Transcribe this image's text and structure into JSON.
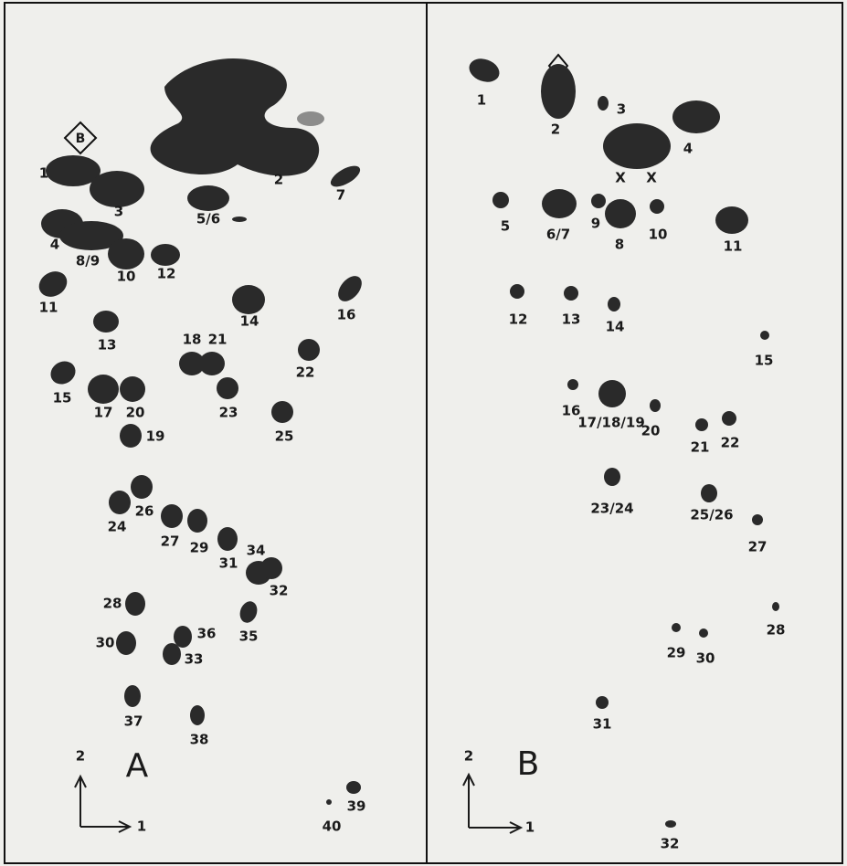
{
  "panel_a": {
    "letter": "A",
    "marker": "B",
    "axis_x": "1",
    "axis_y": "2",
    "spots": [
      "1",
      "3",
      "5/6",
      "2",
      "7",
      "4",
      "8/9",
      "10",
      "12",
      "11",
      "14",
      "16",
      "13",
      "18",
      "21",
      "22",
      "15",
      "17",
      "20",
      "23",
      "25",
      "19",
      "24",
      "26",
      "27",
      "29",
      "31",
      "34",
      "32",
      "28",
      "35",
      "30",
      "36",
      "33",
      "37",
      "38",
      "40",
      "39"
    ]
  },
  "panel_b": {
    "letter": "B",
    "axis_x": "1",
    "axis_y": "2",
    "marks": [
      "X",
      "X"
    ],
    "spots": [
      "1",
      "2",
      "3",
      "4",
      "5",
      "6/7",
      "9",
      "8",
      "10",
      "11",
      "12",
      "13",
      "14",
      "15",
      "16",
      "17/18/19",
      "20",
      "21",
      "22",
      "23/24",
      "25/26",
      "27",
      "28",
      "29",
      "30",
      "31",
      "32"
    ]
  }
}
